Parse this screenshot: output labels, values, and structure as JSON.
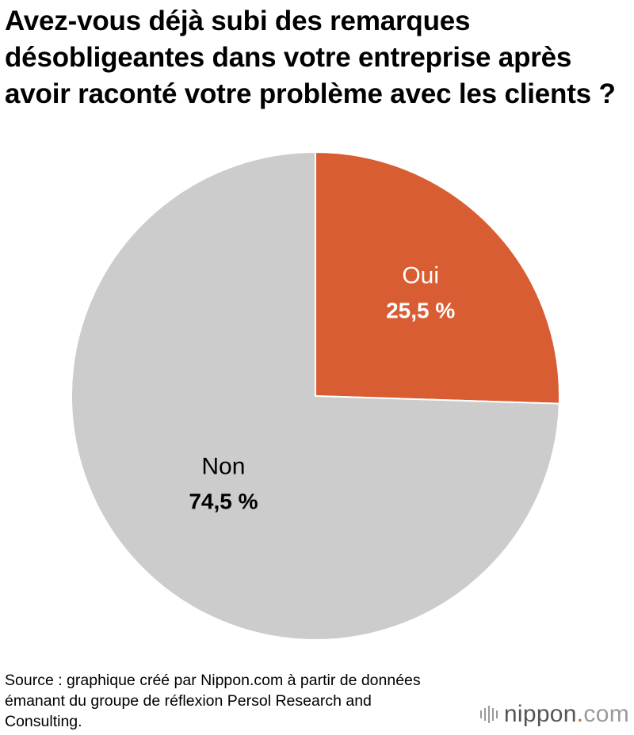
{
  "title": "Avez-vous déjà subi des remarques désobligeantes dans votre entreprise après avoir raconté votre problème avec les clients ?",
  "source": "Source : graphique créé par Nippon.com à partir de données émanant du groupe de réflexion Persol Research and Consulting.",
  "logo": {
    "name": "nippon",
    "dot": ".",
    "tld": "com"
  },
  "chart_data": {
    "type": "pie",
    "start_angle": "12 o'clock",
    "direction": "clockwise",
    "slices": [
      {
        "label": "Oui",
        "value": 25.5,
        "value_label": "25,5 %",
        "color": "#d95d33",
        "text_color": "#ffffff"
      },
      {
        "label": "Non",
        "value": 74.5,
        "value_label": "74,5 %",
        "color": "#cccccc",
        "text_color": "#000000"
      }
    ]
  }
}
